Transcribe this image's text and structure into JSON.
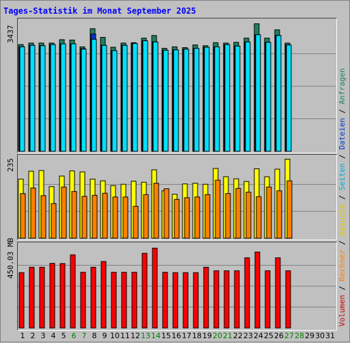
{
  "title": "Tages-Statistik im Monat September 2025",
  "y_labels": {
    "top": "3437",
    "middle": "235",
    "bottom": "450.03 MB"
  },
  "legend": [
    {
      "text": "Volumen",
      "color": "#cc0000"
    },
    {
      "text": " / ",
      "color": "#000000"
    },
    {
      "text": "Rechner",
      "color": "#ff8000"
    },
    {
      "text": " / ",
      "color": "#000000"
    },
    {
      "text": "Besuche",
      "color": "#e6c800"
    },
    {
      "text": " / ",
      "color": "#000000"
    },
    {
      "text": "Seiten",
      "color": "#00aacc"
    },
    {
      "text": " / ",
      "color": "#000000"
    },
    {
      "text": "Dateien",
      "color": "#0033cc"
    },
    {
      "text": " / ",
      "color": "#000000"
    },
    {
      "text": "Anfragen",
      "color": "#208060"
    }
  ],
  "chart_data": [
    {
      "type": "bar",
      "ylim": [
        0,
        3437
      ],
      "categories": [
        "1",
        "2",
        "3",
        "4",
        "5",
        "6",
        "7",
        "8",
        "9",
        "10",
        "11",
        "12",
        "13",
        "14",
        "15",
        "16",
        "17",
        "18",
        "19",
        "20",
        "21",
        "22",
        "23",
        "24",
        "25",
        "26",
        "27",
        "28",
        "29",
        "30",
        "31"
      ],
      "series": [
        {
          "name": "Anfragen",
          "color": "#208060",
          "values": [
            2820,
            2860,
            2860,
            2860,
            2950,
            2940,
            2760,
            3240,
            3010,
            2750,
            2860,
            2870,
            2990,
            3060,
            2720,
            2760,
            2740,
            2810,
            2790,
            2870,
            2860,
            2880,
            2990,
            3370,
            2990,
            3210,
            2860,
            0,
            0,
            0,
            0
          ]
        },
        {
          "name": "Dateien",
          "color": "#0033cc",
          "values": [
            2760,
            2800,
            2790,
            2820,
            2840,
            2840,
            2710,
            3100,
            2800,
            2660,
            2800,
            2850,
            2920,
            2890,
            2670,
            2680,
            2700,
            2720,
            2750,
            2760,
            2820,
            2780,
            2890,
            3080,
            2880,
            3060,
            2810,
            0,
            0,
            0,
            0
          ]
        },
        {
          "name": "Seiten",
          "color": "#00e0ff",
          "values": [
            2760,
            2800,
            2790,
            2820,
            2840,
            2840,
            2700,
            2960,
            2800,
            2660,
            2800,
            2850,
            2920,
            2890,
            2670,
            2680,
            2700,
            2720,
            2750,
            2760,
            2820,
            2780,
            2890,
            3080,
            2880,
            3060,
            2810,
            0,
            0,
            0,
            0
          ]
        }
      ]
    },
    {
      "type": "bar",
      "ylim": [
        0,
        235
      ],
      "categories": [
        "1",
        "2",
        "3",
        "4",
        "5",
        "6",
        "7",
        "8",
        "9",
        "10",
        "11",
        "12",
        "13",
        "14",
        "15",
        "16",
        "17",
        "18",
        "19",
        "20",
        "21",
        "22",
        "23",
        "24",
        "25",
        "26",
        "27",
        "28",
        "29",
        "30",
        "31"
      ],
      "series": [
        {
          "name": "Besuche",
          "color": "#ffff00",
          "values": [
            172,
            195,
            197,
            150,
            181,
            196,
            193,
            172,
            167,
            153,
            157,
            166,
            163,
            199,
            138,
            128,
            158,
            160,
            157,
            203,
            179,
            173,
            165,
            202,
            179,
            201,
            230,
            0,
            0,
            0,
            0
          ]
        },
        {
          "name": "Rechner",
          "color": "#ff8000",
          "values": [
            130,
            146,
            124,
            101,
            149,
            136,
            122,
            125,
            131,
            120,
            120,
            93,
            127,
            160,
            144,
            113,
            118,
            120,
            127,
            169,
            130,
            145,
            134,
            121,
            149,
            138,
            167,
            0,
            0,
            0,
            0
          ]
        }
      ]
    },
    {
      "type": "bar",
      "ylim": [
        0,
        450.03
      ],
      "unit": "MB",
      "categories": [
        "1",
        "2",
        "3",
        "4",
        "5",
        "6",
        "7",
        "8",
        "9",
        "10",
        "11",
        "12",
        "13",
        "14",
        "15",
        "16",
        "17",
        "18",
        "19",
        "20",
        "21",
        "22",
        "23",
        "24",
        "25",
        "26",
        "27",
        "28",
        "29",
        "30",
        "31"
      ],
      "series": [
        {
          "name": "Volumen",
          "color": "#ff0000",
          "values": [
            298,
            327,
            327,
            348,
            347,
            394,
            300,
            327,
            358,
            300,
            300,
            300,
            402,
            430,
            300,
            298,
            298,
            298,
            327,
            308,
            308,
            308,
            378,
            409,
            308,
            378,
            308,
            0,
            0,
            0,
            0
          ]
        }
      ]
    }
  ],
  "x_labels": [
    {
      "text": "1",
      "weekend": false
    },
    {
      "text": "2",
      "weekend": false
    },
    {
      "text": "3",
      "weekend": false
    },
    {
      "text": "4",
      "weekend": false
    },
    {
      "text": "5",
      "weekend": false
    },
    {
      "text": "6",
      "weekend": true
    },
    {
      "text": "7",
      "weekend": true
    },
    {
      "text": "8",
      "weekend": false
    },
    {
      "text": "9",
      "weekend": false
    },
    {
      "text": "10",
      "weekend": false
    },
    {
      "text": "11",
      "weekend": false
    },
    {
      "text": "12",
      "weekend": false
    },
    {
      "text": "13",
      "weekend": true
    },
    {
      "text": "14",
      "weekend": true
    },
    {
      "text": "15",
      "weekend": false
    },
    {
      "text": "16",
      "weekend": false
    },
    {
      "text": "17",
      "weekend": false
    },
    {
      "text": "18",
      "weekend": false
    },
    {
      "text": "19",
      "weekend": false
    },
    {
      "text": "20",
      "weekend": true
    },
    {
      "text": "21",
      "weekend": true
    },
    {
      "text": "22",
      "weekend": false
    },
    {
      "text": "23",
      "weekend": false
    },
    {
      "text": "24",
      "weekend": false
    },
    {
      "text": "25",
      "weekend": false
    },
    {
      "text": "26",
      "weekend": false
    },
    {
      "text": "27",
      "weekend": true
    },
    {
      "text": "28",
      "weekend": true
    },
    {
      "text": "29",
      "weekend": false
    },
    {
      "text": "30",
      "weekend": false
    },
    {
      "text": "31",
      "weekend": false
    }
  ],
  "colors": {
    "weekday_label": "#000000",
    "weekend_label": "#008000",
    "title": "#0000ff",
    "gridline": "#808080"
  }
}
